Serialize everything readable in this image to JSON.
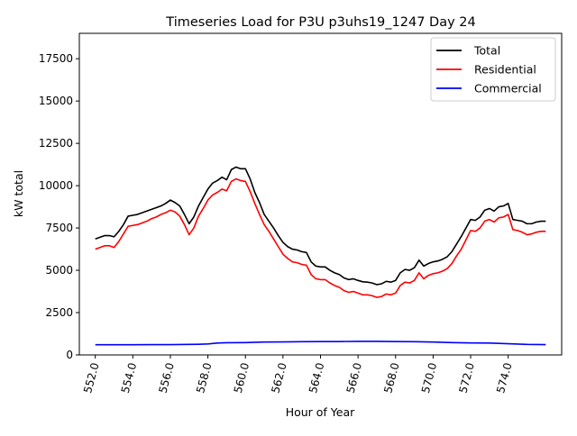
{
  "chart_data": {
    "type": "line",
    "title": "Timeseries Load for P3U p3uhs19_1247  Day 24",
    "xlabel": "Hour of Year",
    "ylabel": "kW total",
    "xlim": [
      551.15,
      576.85
    ],
    "ylim": [
      0,
      19000
    ],
    "xticks": [
      552,
      554,
      556,
      558,
      560,
      562,
      564,
      566,
      568,
      570,
      572,
      574
    ],
    "xtick_labels": [
      "552.0",
      "554.0",
      "556.0",
      "558.0",
      "560.0",
      "562.0",
      "564.0",
      "566.0",
      "568.0",
      "570.0",
      "572.0",
      "574.0"
    ],
    "yticks": [
      0,
      2500,
      5000,
      7500,
      10000,
      12500,
      15000,
      17500
    ],
    "ytick_labels": [
      "0",
      "2500",
      "5000",
      "7500",
      "10000",
      "12500",
      "15000",
      "17500"
    ],
    "grid": false,
    "legend_position": "top-right",
    "series": [
      {
        "name": "Total",
        "color": "#000000",
        "points": [
          [
            552.0,
            6850
          ],
          [
            552.25,
            6950
          ],
          [
            552.5,
            7050
          ],
          [
            552.75,
            7050
          ],
          [
            553.0,
            6980
          ],
          [
            553.25,
            7300
          ],
          [
            553.5,
            7700
          ],
          [
            553.75,
            8200
          ],
          [
            554.0,
            8250
          ],
          [
            554.25,
            8300
          ],
          [
            554.5,
            8400
          ],
          [
            554.75,
            8500
          ],
          [
            555.0,
            8600
          ],
          [
            555.25,
            8700
          ],
          [
            555.5,
            8800
          ],
          [
            555.75,
            8950
          ],
          [
            556.0,
            9150
          ],
          [
            556.25,
            9000
          ],
          [
            556.5,
            8800
          ],
          [
            556.75,
            8300
          ],
          [
            557.0,
            7750
          ],
          [
            557.25,
            8150
          ],
          [
            557.5,
            8800
          ],
          [
            557.75,
            9300
          ],
          [
            558.0,
            9800
          ],
          [
            558.25,
            10150
          ],
          [
            558.5,
            10300
          ],
          [
            558.75,
            10500
          ],
          [
            559.0,
            10350
          ],
          [
            559.25,
            10950
          ],
          [
            559.5,
            11100
          ],
          [
            559.75,
            11000
          ],
          [
            560.0,
            11000
          ],
          [
            560.25,
            10400
          ],
          [
            560.5,
            9600
          ],
          [
            560.75,
            9000
          ],
          [
            561.0,
            8300
          ],
          [
            561.25,
            7900
          ],
          [
            561.5,
            7500
          ],
          [
            561.75,
            7050
          ],
          [
            562.0,
            6650
          ],
          [
            562.25,
            6400
          ],
          [
            562.5,
            6250
          ],
          [
            562.75,
            6200
          ],
          [
            563.0,
            6100
          ],
          [
            563.25,
            6050
          ],
          [
            563.5,
            5500
          ],
          [
            563.75,
            5250
          ],
          [
            564.0,
            5200
          ],
          [
            564.25,
            5200
          ],
          [
            564.5,
            5000
          ],
          [
            564.75,
            4850
          ],
          [
            565.0,
            4750
          ],
          [
            565.25,
            4550
          ],
          [
            565.5,
            4450
          ],
          [
            565.75,
            4500
          ],
          [
            566.0,
            4400
          ],
          [
            566.25,
            4320
          ],
          [
            566.5,
            4300
          ],
          [
            566.75,
            4250
          ],
          [
            567.0,
            4150
          ],
          [
            567.25,
            4200
          ],
          [
            567.5,
            4350
          ],
          [
            567.75,
            4300
          ],
          [
            568.0,
            4400
          ],
          [
            568.25,
            4850
          ],
          [
            568.5,
            5050
          ],
          [
            568.75,
            5000
          ],
          [
            569.0,
            5150
          ],
          [
            569.25,
            5600
          ],
          [
            569.5,
            5250
          ],
          [
            569.75,
            5400
          ],
          [
            570.0,
            5500
          ],
          [
            570.25,
            5550
          ],
          [
            570.5,
            5650
          ],
          [
            570.75,
            5800
          ],
          [
            571.0,
            6100
          ],
          [
            571.25,
            6550
          ],
          [
            571.5,
            7000
          ],
          [
            571.75,
            7500
          ],
          [
            572.0,
            8000
          ],
          [
            572.25,
            7950
          ],
          [
            572.5,
            8150
          ],
          [
            572.75,
            8550
          ],
          [
            573.0,
            8650
          ],
          [
            573.25,
            8500
          ],
          [
            573.5,
            8750
          ],
          [
            573.75,
            8800
          ],
          [
            574.0,
            8950
          ],
          [
            574.25,
            8000
          ],
          [
            574.5,
            7950
          ],
          [
            574.75,
            7900
          ],
          [
            575.0,
            7750
          ],
          [
            575.25,
            7750
          ],
          [
            575.5,
            7850
          ],
          [
            575.75,
            7900
          ],
          [
            576.0,
            7900
          ]
        ]
      },
      {
        "name": "Residential",
        "color": "#ff0000",
        "points": [
          [
            552.0,
            6250
          ],
          [
            552.25,
            6350
          ],
          [
            552.5,
            6450
          ],
          [
            552.75,
            6450
          ],
          [
            553.0,
            6350
          ],
          [
            553.25,
            6700
          ],
          [
            553.5,
            7150
          ],
          [
            553.75,
            7600
          ],
          [
            554.0,
            7650
          ],
          [
            554.25,
            7700
          ],
          [
            554.5,
            7800
          ],
          [
            554.75,
            7900
          ],
          [
            555.0,
            8050
          ],
          [
            555.25,
            8150
          ],
          [
            555.5,
            8300
          ],
          [
            555.75,
            8400
          ],
          [
            556.0,
            8550
          ],
          [
            556.25,
            8450
          ],
          [
            556.5,
            8200
          ],
          [
            556.75,
            7700
          ],
          [
            557.0,
            7100
          ],
          [
            557.25,
            7500
          ],
          [
            557.5,
            8200
          ],
          [
            557.75,
            8650
          ],
          [
            558.0,
            9150
          ],
          [
            558.25,
            9450
          ],
          [
            558.5,
            9600
          ],
          [
            558.75,
            9800
          ],
          [
            559.0,
            9700
          ],
          [
            559.25,
            10250
          ],
          [
            559.5,
            10400
          ],
          [
            559.75,
            10300
          ],
          [
            560.0,
            10250
          ],
          [
            560.25,
            9650
          ],
          [
            560.5,
            8950
          ],
          [
            560.75,
            8300
          ],
          [
            561.0,
            7700
          ],
          [
            561.25,
            7300
          ],
          [
            561.5,
            6850
          ],
          [
            561.75,
            6400
          ],
          [
            562.0,
            5950
          ],
          [
            562.25,
            5700
          ],
          [
            562.5,
            5500
          ],
          [
            562.75,
            5450
          ],
          [
            563.0,
            5350
          ],
          [
            563.25,
            5300
          ],
          [
            563.5,
            4750
          ],
          [
            563.75,
            4500
          ],
          [
            564.0,
            4450
          ],
          [
            564.25,
            4450
          ],
          [
            564.5,
            4250
          ],
          [
            564.75,
            4100
          ],
          [
            565.0,
            4000
          ],
          [
            565.25,
            3800
          ],
          [
            565.5,
            3700
          ],
          [
            565.75,
            3750
          ],
          [
            566.0,
            3650
          ],
          [
            566.25,
            3550
          ],
          [
            566.5,
            3550
          ],
          [
            566.75,
            3500
          ],
          [
            567.0,
            3400
          ],
          [
            567.25,
            3450
          ],
          [
            567.5,
            3600
          ],
          [
            567.75,
            3550
          ],
          [
            568.0,
            3650
          ],
          [
            568.25,
            4100
          ],
          [
            568.5,
            4300
          ],
          [
            568.75,
            4250
          ],
          [
            569.0,
            4400
          ],
          [
            569.25,
            4850
          ],
          [
            569.5,
            4500
          ],
          [
            569.75,
            4700
          ],
          [
            570.0,
            4800
          ],
          [
            570.25,
            4850
          ],
          [
            570.5,
            4950
          ],
          [
            570.75,
            5100
          ],
          [
            571.0,
            5400
          ],
          [
            571.25,
            5850
          ],
          [
            571.5,
            6250
          ],
          [
            571.75,
            6800
          ],
          [
            572.0,
            7350
          ],
          [
            572.25,
            7300
          ],
          [
            572.5,
            7500
          ],
          [
            572.75,
            7900
          ],
          [
            573.0,
            8000
          ],
          [
            573.25,
            7850
          ],
          [
            573.5,
            8100
          ],
          [
            573.75,
            8150
          ],
          [
            574.0,
            8300
          ],
          [
            574.25,
            7400
          ],
          [
            574.5,
            7350
          ],
          [
            574.75,
            7250
          ],
          [
            575.0,
            7100
          ],
          [
            575.25,
            7150
          ],
          [
            575.5,
            7250
          ],
          [
            575.75,
            7300
          ],
          [
            576.0,
            7300
          ]
        ]
      },
      {
        "name": "Commercial",
        "color": "#0000ff",
        "points": [
          [
            552.0,
            600
          ],
          [
            553.0,
            600
          ],
          [
            554.0,
            600
          ],
          [
            555.0,
            610
          ],
          [
            556.0,
            610
          ],
          [
            557.0,
            620
          ],
          [
            557.5,
            630
          ],
          [
            558.0,
            650
          ],
          [
            558.5,
            700
          ],
          [
            559.0,
            720
          ],
          [
            560.0,
            730
          ],
          [
            561.0,
            760
          ],
          [
            562.0,
            770
          ],
          [
            563.0,
            780
          ],
          [
            564.0,
            790
          ],
          [
            565.0,
            790
          ],
          [
            566.0,
            800
          ],
          [
            567.0,
            800
          ],
          [
            568.0,
            790
          ],
          [
            569.0,
            780
          ],
          [
            570.0,
            760
          ],
          [
            571.0,
            730
          ],
          [
            572.0,
            710
          ],
          [
            573.0,
            700
          ],
          [
            574.0,
            660
          ],
          [
            575.0,
            620
          ],
          [
            576.0,
            610
          ]
        ]
      }
    ]
  }
}
